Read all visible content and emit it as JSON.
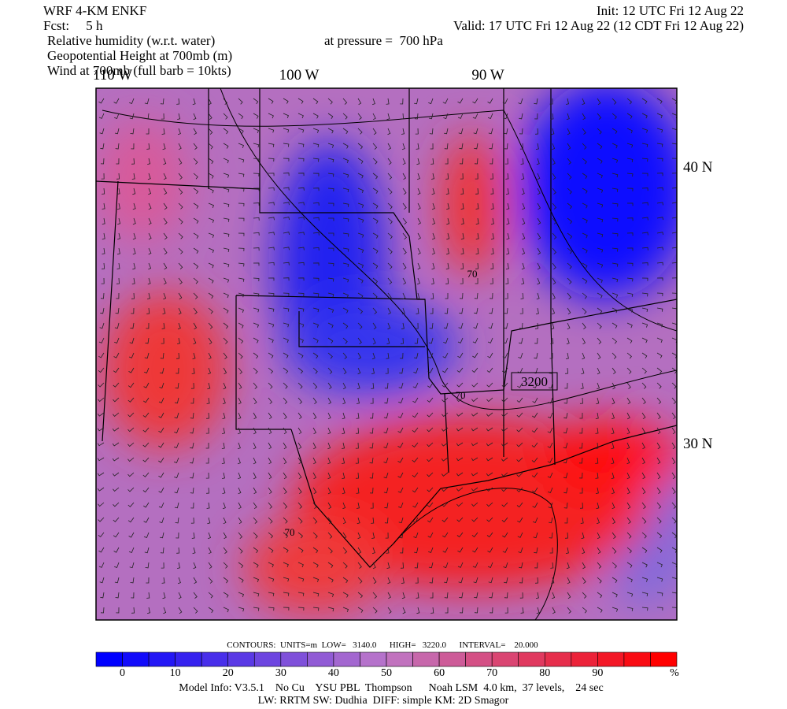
{
  "header": {
    "model": "WRF 4-KM ENKF",
    "forecast": "Fcst:     5 h",
    "fields": [
      "Relative humidity (w.r.t. water)",
      "Geopotential Height at 700mb (m)",
      "Wind at 700mb (full barb = 10kts)"
    ],
    "init": "Init: 12 UTC Fri 12 Aug 22",
    "valid": "Valid: 17 UTC Fri 12 Aug 22 (12 CDT Fri 12 Aug 22)",
    "pressure": "at pressure =  700 hPa"
  },
  "map": {
    "longitudes": [
      "110 W",
      "100 W",
      "90 W"
    ],
    "latitudes": [
      "40 N",
      "30 N"
    ],
    "contour_labels": [
      "3200",
      "70",
      "70",
      "70"
    ]
  },
  "contours": "CONTOURS:  UNITS=m  LOW=   3140.0      HIGH=   3220.0      INTERVAL=    20.000",
  "colorbar": {
    "labels": [
      "0",
      "10",
      "20",
      "30",
      "40",
      "50",
      "60",
      "70",
      "80",
      "90"
    ],
    "unit": "%"
  },
  "footer": [
    "Model Info: V3.5.1    No Cu    YSU PBL  Thompson      Noah LSM  4.0 km,  37 levels,    24 sec",
    "LW: RRTM SW: Dudhia  DIFF: simple KM: 2D Smagor"
  ]
}
